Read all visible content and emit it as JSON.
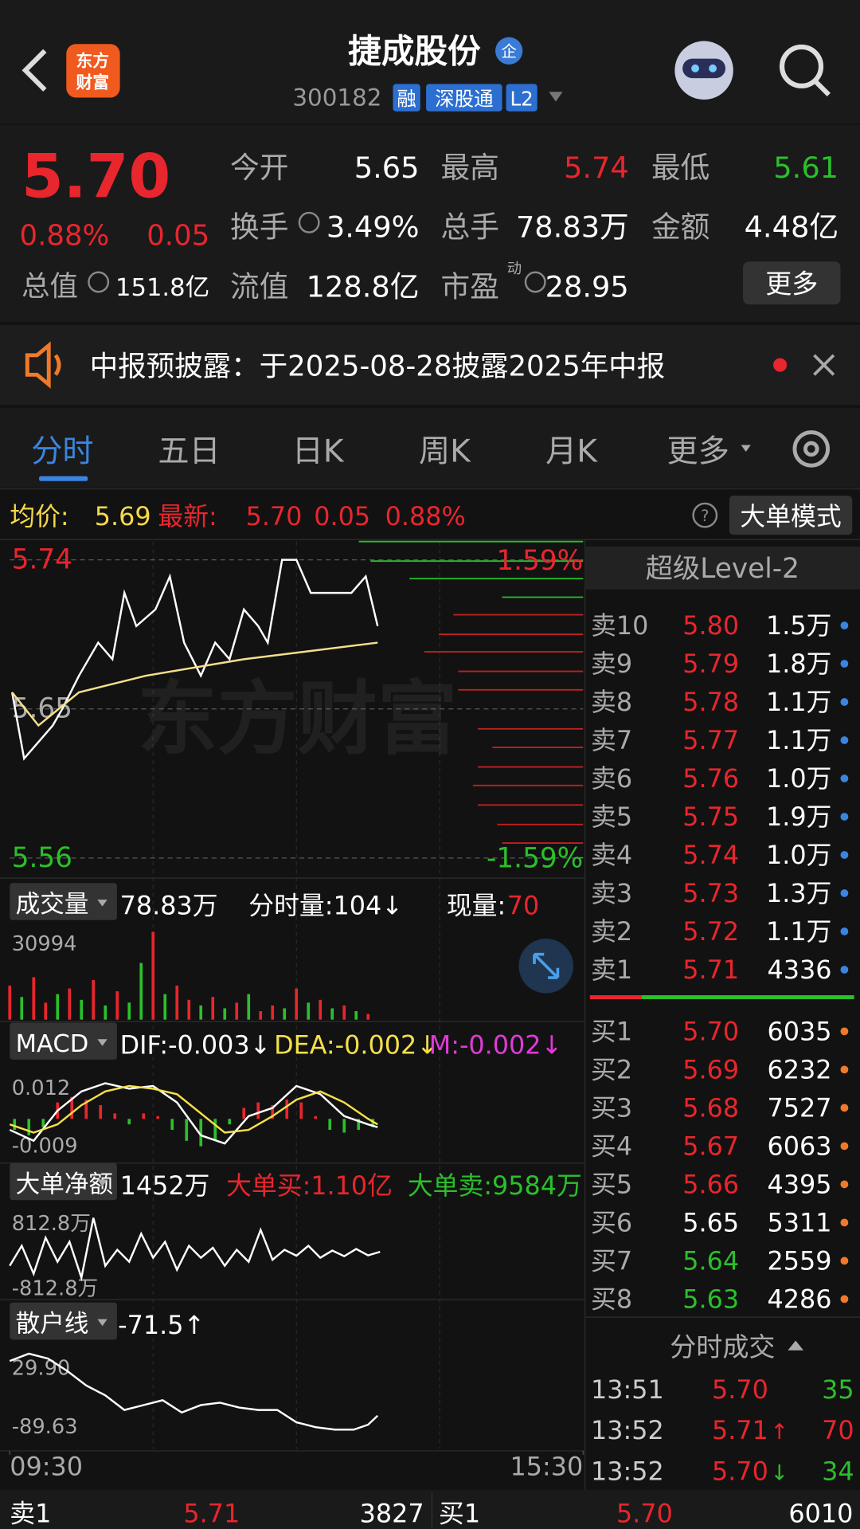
{
  "header": {
    "title": "捷成股份",
    "badge": "企",
    "code": "300182",
    "tags": [
      "融",
      "深股通",
      "L2"
    ],
    "logo": [
      "东方",
      "财富"
    ]
  },
  "quote": {
    "price": "5.70",
    "change_pct": "0.88%",
    "change": "0.05",
    "total_value_label": "总值",
    "total_value": "151.8亿",
    "more": "更多",
    "fields": [
      {
        "label": "今开",
        "value": "5.65",
        "color": "#ffffff"
      },
      {
        "label": "最高",
        "value": "5.74",
        "color": "#e8262d"
      },
      {
        "label": "最低",
        "value": "5.61",
        "color": "#2bc02b"
      },
      {
        "label": "换手",
        "value": "3.49%",
        "color": "#ffffff"
      },
      {
        "label": "总手",
        "value": "78.83万",
        "color": "#ffffff"
      },
      {
        "label": "金额",
        "value": "4.48亿",
        "color": "#ffffff"
      },
      {
        "label": "流值",
        "value": "128.8亿",
        "color": "#ffffff"
      },
      {
        "label": "市盈",
        "value": "28.95",
        "color": "#ffffff",
        "sup": "动"
      }
    ]
  },
  "notice": {
    "text": "中报预披露：于2025-08-28披露2025年中报"
  },
  "tabs": [
    "分时",
    "五日",
    "日K",
    "周K",
    "月K",
    "更多"
  ],
  "info": {
    "avg_label": "均价:",
    "avg": "5.69",
    "latest_label": "最新:",
    "latest": "5.70",
    "change": "0.05",
    "change_pct": "0.88%",
    "mode": "大单模式"
  },
  "chart_data": [
    {
      "type": "line",
      "watermark": "东方财富",
      "xlim": [
        0,
        240
      ],
      "xticks": [
        {
          "value": 0,
          "label": "09:30"
        },
        {
          "value": 240,
          "label": "15:30"
        }
      ],
      "ylim": [
        5.549,
        5.751
      ],
      "yticks": [
        5.74,
        5.65,
        5.56
      ],
      "ytick_colors": [
        "#e8262d",
        "#aaaaaa",
        "#2bc02b"
      ],
      "y2lim": [
        -1.788,
        1.788
      ],
      "y2ticks": [
        {
          "value": 1.59,
          "label": "1.59%"
        },
        {
          "value": -1.59,
          "label": "-1.59%"
        }
      ],
      "y2tick_colors": [
        "#e8262d",
        "#2bc02b"
      ],
      "grid": true,
      "series": [
        {
          "color": "#ffffff",
          "x": [
            1,
            6,
            12,
            18,
            22,
            29,
            37,
            43,
            48,
            53,
            61,
            67,
            73,
            80,
            86,
            92,
            98,
            104,
            108,
            114,
            120,
            126,
            135,
            143,
            149,
            154
          ],
          "values": [
            5.66,
            5.62,
            5.63,
            5.64,
            5.65,
            5.67,
            5.69,
            5.68,
            5.72,
            5.7,
            5.71,
            5.73,
            5.69,
            5.67,
            5.69,
            5.68,
            5.71,
            5.7,
            5.69,
            5.74,
            5.74,
            5.72,
            5.72,
            5.72,
            5.73,
            5.7
          ]
        },
        {
          "color": "#f5e08a",
          "x": [
            1,
            12,
            29,
            57,
            98,
            154
          ],
          "values": [
            5.66,
            5.64,
            5.66,
            5.67,
            5.68,
            5.69
          ]
        }
      ]
    },
    {
      "type": "bar",
      "title": "成交量",
      "header": [
        {
          "text": "78.83万",
          "color": "#ffffff"
        },
        {
          "text": "分时量:104↓",
          "color": "#ffffff"
        },
        {
          "text": "现量:",
          "color": "#ffffff"
        },
        {
          "text": "70",
          "color": "#e8262d"
        }
      ],
      "xlim": [
        0,
        240
      ],
      "ylim": [
        0,
        30994
      ],
      "yticks": [
        30994
      ],
      "x": [
        0,
        5,
        10,
        15,
        20,
        25,
        30,
        35,
        40,
        45,
        50,
        55,
        60,
        65,
        70,
        75,
        80,
        85,
        90,
        95,
        100,
        105,
        110,
        115,
        120,
        125,
        130,
        135,
        140,
        145,
        150
      ],
      "values": [
        12000,
        8000,
        15000,
        6000,
        9000,
        11000,
        7000,
        14000,
        5000,
        10000,
        6000,
        20000,
        30994,
        9000,
        12000,
        7000,
        5000,
        8000,
        4000,
        6000,
        9000,
        3000,
        5000,
        4000,
        11000,
        6000,
        7000,
        4000,
        5000,
        3000,
        2000
      ],
      "colors": [
        "#e8262d",
        "#2bc02b",
        "#e8262d",
        "#e8262d",
        "#2bc02b",
        "#e8262d",
        "#2bc02b",
        "#e8262d",
        "#2bc02b",
        "#e8262d",
        "#2bc02b",
        "#2bc02b",
        "#e8262d",
        "#2bc02b",
        "#e8262d",
        "#e8262d",
        "#2bc02b",
        "#e8262d",
        "#2bc02b",
        "#e8262d",
        "#2bc02b",
        "#e8262d",
        "#e8262d",
        "#2bc02b",
        "#e8262d",
        "#2bc02b",
        "#e8262d",
        "#2bc02b",
        "#e8262d",
        "#2bc02b",
        "#e8262d"
      ]
    },
    {
      "type": "macd",
      "title": "MACD",
      "header": [
        {
          "text": "DIF:-0.003↓",
          "color": "#ffffff"
        },
        {
          "text": "DEA:-0.002↓",
          "color": "#f5e04a"
        },
        {
          "text": "M:-0.002↓",
          "color": "#e03ad8"
        }
      ],
      "xlim": [
        0,
        240
      ],
      "ylim": [
        -0.0154,
        0.0177
      ],
      "yticks": [
        0.012,
        -0.009
      ],
      "up_color": "#e8262d",
      "down_color": "#2bc02b",
      "series": [
        {
          "color": "#ffffff",
          "x": [
            0,
            10,
            20,
            30,
            40,
            50,
            60,
            70,
            80,
            90,
            100,
            110,
            120,
            130,
            140,
            150,
            154
          ],
          "values": [
            -0.004,
            -0.008,
            0.003,
            0.01,
            0.013,
            0.011,
            0.012,
            0.006,
            -0.006,
            -0.009,
            0.001,
            0.004,
            0.012,
            0.009,
            0.001,
            -0.002,
            -0.003
          ]
        },
        {
          "color": "#f5e04a",
          "x": [
            0,
            10,
            20,
            30,
            40,
            50,
            60,
            70,
            80,
            90,
            100,
            110,
            120,
            130,
            140,
            150,
            154
          ],
          "values": [
            -0.002,
            -0.005,
            -0.002,
            0.005,
            0.01,
            0.012,
            0.011,
            0.009,
            0.002,
            -0.005,
            -0.004,
            0.001,
            0.007,
            0.01,
            0.006,
            0,
            -0.002
          ]
        }
      ],
      "histogram": {
        "x": [
          2,
          8,
          14,
          20,
          26,
          32,
          38,
          44,
          50,
          56,
          62,
          68,
          74,
          80,
          86,
          92,
          98,
          104,
          110,
          116,
          122,
          128,
          134,
          140,
          146,
          152
        ],
        "values": [
          -0.004,
          -0.006,
          -0.003,
          0.006,
          0.008,
          0.007,
          0.005,
          0.002,
          -0.002,
          0.002,
          0.001,
          -0.004,
          -0.008,
          -0.01,
          -0.008,
          -0.002,
          0.004,
          0.006,
          0.005,
          0.007,
          0.006,
          0.001,
          -0.004,
          -0.005,
          -0.004,
          -0.003
        ]
      }
    },
    {
      "type": "line",
      "title": "大单净额",
      "header": [
        {
          "text": "1452万",
          "color": "#ffffff"
        },
        {
          "text": "大单买:1.10亿",
          "color": "#e8262d"
        },
        {
          "text": "大单卖:9584万",
          "color": "#2bc02b"
        }
      ],
      "xlim": [
        0,
        240
      ],
      "ylim": [
        -1100,
        1100
      ],
      "yticks": [
        {
          "value": 812.8,
          "label": "812.8万"
        },
        {
          "value": -812.8,
          "label": "-812.8万"
        }
      ],
      "series": [
        {
          "color": "#ffffff",
          "x": [
            0,
            5,
            10,
            15,
            20,
            25,
            30,
            35,
            40,
            45,
            50,
            55,
            60,
            65,
            70,
            75,
            80,
            85,
            90,
            95,
            100,
            105,
            110,
            115,
            120,
            125,
            130,
            135,
            140,
            145,
            150,
            155
          ],
          "values": [
            -300,
            200,
            -500,
            400,
            -200,
            300,
            -600,
            900,
            -300,
            100,
            -200,
            500,
            -100,
            300,
            -400,
            200,
            -100,
            150,
            -300,
            100,
            -200,
            600,
            -150,
            100,
            -50,
            200,
            -100,
            80,
            -60,
            120,
            -40,
            50
          ]
        }
      ]
    },
    {
      "type": "line",
      "title": "散户线",
      "header": [
        {
          "text": "-71.5↑",
          "color": "#ffffff"
        }
      ],
      "xlim": [
        0,
        240
      ],
      "ylim": [
        -139.4,
        59.8
      ],
      "yticks": [
        {
          "value": 29.9,
          "label": "29.90"
        },
        -89.63
      ],
      "series": [
        {
          "color": "#ffffff",
          "x": [
            0,
            8,
            16,
            24,
            32,
            40,
            48,
            56,
            64,
            72,
            80,
            88,
            96,
            104,
            112,
            120,
            128,
            136,
            144,
            150,
            154
          ],
          "values": [
            40,
            55,
            45,
            20,
            -10,
            -30,
            -60,
            -50,
            -40,
            -65,
            -50,
            -45,
            -55,
            -60,
            -60,
            -85,
            -95,
            -100,
            -100,
            -90,
            -71.5
          ]
        }
      ]
    }
  ],
  "level2": {
    "title": "超级Level-2",
    "sell": [
      {
        "name": "卖10",
        "price": "5.80",
        "volume": "1.5万",
        "color": "#e8262d"
      },
      {
        "name": "卖9",
        "price": "5.79",
        "volume": "1.8万",
        "color": "#e8262d"
      },
      {
        "name": "卖8",
        "price": "5.78",
        "volume": "1.1万",
        "color": "#e8262d"
      },
      {
        "name": "卖7",
        "price": "5.77",
        "volume": "1.1万",
        "color": "#e8262d"
      },
      {
        "name": "卖6",
        "price": "5.76",
        "volume": "1.0万",
        "color": "#e8262d"
      },
      {
        "name": "卖5",
        "price": "5.75",
        "volume": "1.9万",
        "color": "#e8262d"
      },
      {
        "name": "卖4",
        "price": "5.74",
        "volume": "1.0万",
        "color": "#e8262d"
      },
      {
        "name": "卖3",
        "price": "5.73",
        "volume": "1.3万",
        "color": "#e8262d"
      },
      {
        "name": "卖2",
        "price": "5.72",
        "volume": "1.1万",
        "color": "#e8262d"
      },
      {
        "name": "卖1",
        "price": "5.71",
        "volume": "4336",
        "color": "#e8262d"
      }
    ],
    "buy": [
      {
        "name": "买1",
        "price": "5.70",
        "volume": "6035",
        "color": "#e8262d"
      },
      {
        "name": "买2",
        "price": "5.69",
        "volume": "6232",
        "color": "#e8262d"
      },
      {
        "name": "买3",
        "price": "5.68",
        "volume": "7527",
        "color": "#e8262d"
      },
      {
        "name": "买4",
        "price": "5.67",
        "volume": "6063",
        "color": "#e8262d"
      },
      {
        "name": "买5",
        "price": "5.66",
        "volume": "4395",
        "color": "#e8262d"
      },
      {
        "name": "买6",
        "price": "5.65",
        "volume": "5311",
        "color": "#ffffff"
      },
      {
        "name": "买7",
        "price": "5.64",
        "volume": "2559",
        "color": "#2bc02b"
      },
      {
        "name": "买8",
        "price": "5.63",
        "volume": "4286",
        "color": "#2bc02b"
      }
    ]
  },
  "trades": {
    "title": "分时成交",
    "rows": [
      {
        "time": "13:51",
        "price": "5.70",
        "volume": "35",
        "volume_color": "#2bc02b"
      },
      {
        "time": "13:52",
        "price": "5.71",
        "arrow": "↑",
        "arrow_color": "#e8262d",
        "volume": "70",
        "volume_color": "#e8262d"
      },
      {
        "time": "13:52",
        "price": "5.70",
        "arrow": "↓",
        "arrow_color": "#2bc02b",
        "volume": "34",
        "volume_color": "#2bc02b"
      }
    ]
  },
  "bottom": {
    "sell": {
      "label": "卖1",
      "price": "5.71",
      "volume": "3827"
    },
    "buy": {
      "label": "买1",
      "price": "5.70",
      "volume": "6010"
    }
  }
}
